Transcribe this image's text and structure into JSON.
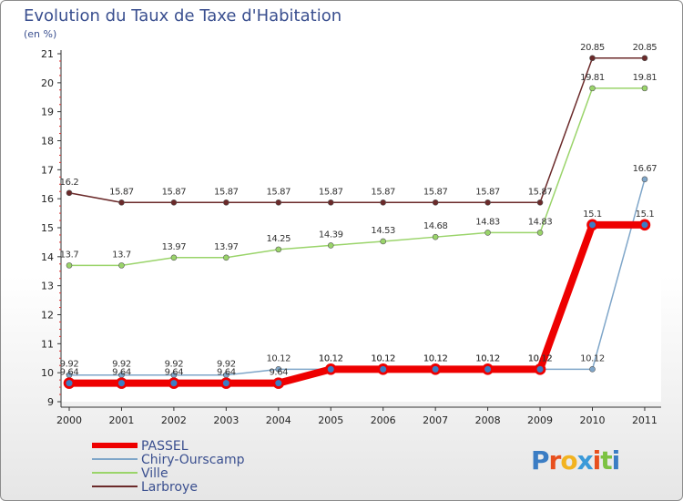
{
  "chart_data": {
    "type": "line",
    "title": "Evolution du Taux de Taxe d'Habitation",
    "ylabel": "(en %)",
    "xlabel": "",
    "x": [
      "2000",
      "2001",
      "2002",
      "2003",
      "2004",
      "2005",
      "2006",
      "2007",
      "2008",
      "2009",
      "2010",
      "2011"
    ],
    "ylim": [
      9,
      21
    ],
    "yticks": [
      "9",
      "10",
      "11",
      "12",
      "13",
      "14",
      "15",
      "16",
      "17",
      "18",
      "19",
      "20",
      "21"
    ],
    "series": [
      {
        "name": "Larbroye",
        "color": "#6b2a2a",
        "width": 1.5,
        "values": [
          16.2,
          15.87,
          15.87,
          15.87,
          15.87,
          15.87,
          15.87,
          15.87,
          15.87,
          15.87,
          20.85,
          20.85
        ],
        "labels": [
          "16.2",
          "15.87",
          "15.87",
          "15.87",
          "15.87",
          "15.87",
          "15.87",
          "15.87",
          "15.87",
          "15.87",
          "20.85",
          "20.85"
        ]
      },
      {
        "name": "Ville",
        "color": "#9ad46a",
        "width": 1.5,
        "values": [
          13.7,
          13.7,
          13.97,
          13.97,
          14.25,
          14.39,
          14.53,
          14.68,
          14.83,
          14.83,
          19.81,
          19.81
        ],
        "labels": [
          "13.7",
          "13.7",
          "13.97",
          "13.97",
          "14.25",
          "14.39",
          "14.53",
          "14.68",
          "14.83",
          "14.83",
          "19.81",
          "19.81"
        ]
      },
      {
        "name": "Chiry-Ourscamp",
        "color": "#7fa6c9",
        "width": 1.5,
        "values": [
          9.92,
          9.92,
          9.92,
          9.92,
          10.12,
          10.12,
          10.12,
          10.12,
          10.12,
          10.12,
          10.12,
          16.67
        ],
        "labels": [
          "9.92",
          "9.92",
          "9.92",
          "9.92",
          "10.12",
          "10.12",
          "10.12",
          "10.12",
          "10.12",
          "10.12",
          "10.12",
          "16.67"
        ]
      },
      {
        "name": "PASSEL",
        "color": "#ee0000",
        "width": 8,
        "values": [
          9.64,
          9.64,
          9.64,
          9.64,
          9.64,
          10.12,
          10.12,
          10.12,
          10.12,
          10.12,
          15.1,
          15.1
        ],
        "labels": [
          "9.64",
          "9.64",
          "9.64",
          "9.64",
          "9.64",
          "10.12",
          "10.12",
          "10.12",
          "10.12",
          "10.12",
          "15.1",
          "15.1"
        ]
      }
    ],
    "legend": [
      "PASSEL",
      "Chiry-Ourscamp",
      "Ville",
      "Larbroye"
    ]
  },
  "logo_text": "Proxiti"
}
